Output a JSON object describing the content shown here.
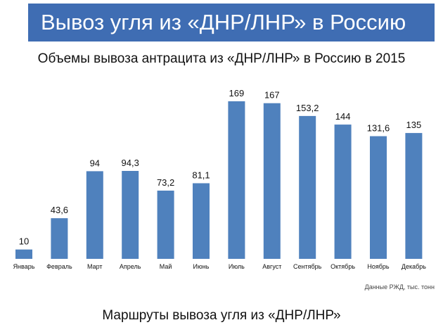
{
  "header": {
    "title": "Вывоз угля из «ДНР/ЛНР» в Россию"
  },
  "colors": {
    "banner": "#3f6db3",
    "bar": "#4f81bd"
  },
  "chart_data": {
    "type": "bar",
    "title": "Объемы вывоза антрацита из «ДНР/ЛНР» в Россию в 2015",
    "categories": [
      "Январь",
      "Февраль",
      "Март",
      "Апрель",
      "Май",
      "Июнь",
      "Июль",
      "Август",
      "Сентябрь",
      "Октябрь",
      "Ноябрь",
      "Декабрь"
    ],
    "values": [
      10,
      43.6,
      94,
      94.3,
      73.2,
      81.1,
      169,
      167,
      153.2,
      144,
      131.6,
      135
    ],
    "value_labels": [
      "10",
      "43,6",
      "94",
      "94,3",
      "73,2",
      "81,1",
      "169",
      "167",
      "153,2",
      "144",
      "131,6",
      "135"
    ],
    "ylim": [
      0,
      169
    ],
    "grid": false,
    "legend": "none",
    "source": "Данные РЖД, тыс. тонн"
  },
  "footer": {
    "text": "Маршруты вывоза угля из «ДНР/ЛНР»"
  }
}
